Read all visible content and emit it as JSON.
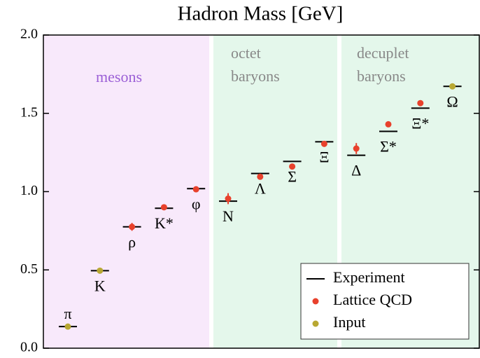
{
  "chart_data": {
    "type": "scatter",
    "title": "Hadron Mass [GeV]",
    "categories": [
      "π",
      "K",
      "ρ",
      "K*",
      "φ",
      "N",
      "Λ",
      "Σ",
      "Ξ",
      "Δ",
      "Σ*",
      "Ξ*",
      "Ω"
    ],
    "series": [
      {
        "name": "Experiment",
        "color": "#000000",
        "values": [
          0.138,
          0.495,
          0.775,
          0.894,
          1.019,
          0.939,
          1.116,
          1.193,
          1.318,
          1.232,
          1.385,
          1.533,
          1.672
        ]
      },
      {
        "name": "Lattice QCD",
        "color": "#e8412c",
        "values": [
          null,
          null,
          0.775,
          0.9,
          1.015,
          0.955,
          1.095,
          1.16,
          1.305,
          1.275,
          1.43,
          1.565,
          null
        ],
        "errors": [
          null,
          null,
          0.025,
          0.012,
          0.012,
          0.035,
          0.015,
          0.012,
          0.012,
          0.035,
          0.015,
          0.015,
          null
        ]
      },
      {
        "name": "Input",
        "color": "#b8a832",
        "values": [
          0.138,
          0.495,
          null,
          null,
          null,
          null,
          null,
          null,
          null,
          null,
          null,
          null,
          1.672
        ]
      }
    ],
    "regions": [
      {
        "label": [
          "mesons"
        ]
      },
      {
        "label": [
          "octet",
          "baryons"
        ]
      },
      {
        "label": [
          "decuplet",
          "baryons"
        ]
      }
    ],
    "ylim": [
      0,
      2
    ],
    "yticks": [
      {
        "value": 0,
        "label": "0.0"
      },
      {
        "value": 0.5,
        "label": "0.5"
      },
      {
        "value": 1,
        "label": "1.0"
      },
      {
        "value": 1.5,
        "label": "1.5"
      },
      {
        "value": 2,
        "label": "2.0"
      }
    ],
    "legend": "lower right"
  }
}
